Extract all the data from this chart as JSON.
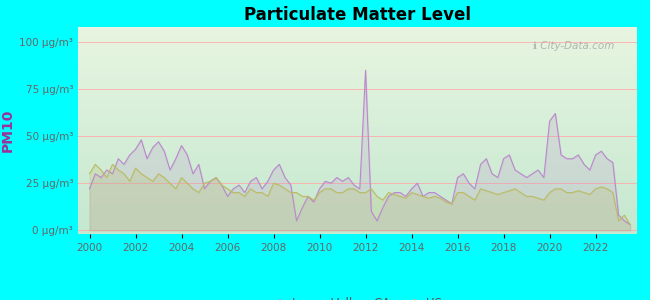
{
  "title": "Particulate Matter Level",
  "ylabel": "PM10",
  "background_color": "#00FFFF",
  "plot_bg_top": "#c5e8d0",
  "plot_bg_bottom": "#e8f5e0",
  "leona_color": "#bb88cc",
  "us_color": "#bbbb66",
  "watermark": "ℹ City-Data.com",
  "yticks": [
    0,
    25,
    50,
    75,
    100
  ],
  "ytick_labels": [
    "0 μg/m³",
    "25 μg/m³",
    "50 μg/m³",
    "75 μg/m³",
    "100 μg/m³"
  ],
  "xlim": [
    1999.5,
    2023.8
  ],
  "ylim": [
    -2,
    108
  ],
  "leona_x": [
    2000.0,
    2000.25,
    2000.5,
    2000.75,
    2001.0,
    2001.25,
    2001.5,
    2001.75,
    2002.0,
    2002.25,
    2002.5,
    2002.75,
    2003.0,
    2003.25,
    2003.5,
    2003.75,
    2004.0,
    2004.25,
    2004.5,
    2004.75,
    2005.0,
    2005.25,
    2005.5,
    2005.75,
    2006.0,
    2006.25,
    2006.5,
    2006.75,
    2007.0,
    2007.25,
    2007.5,
    2007.75,
    2008.0,
    2008.25,
    2008.5,
    2008.75,
    2009.0,
    2009.25,
    2009.5,
    2009.75,
    2010.0,
    2010.25,
    2010.5,
    2010.75,
    2011.0,
    2011.25,
    2011.5,
    2011.75,
    2012.0,
    2012.25,
    2012.5,
    2012.75,
    2013.0,
    2013.25,
    2013.5,
    2013.75,
    2014.0,
    2014.25,
    2014.5,
    2014.75,
    2015.0,
    2015.25,
    2015.5,
    2015.75,
    2016.0,
    2016.25,
    2016.5,
    2016.75,
    2017.0,
    2017.25,
    2017.5,
    2017.75,
    2018.0,
    2018.25,
    2018.5,
    2018.75,
    2019.0,
    2019.25,
    2019.5,
    2019.75,
    2020.0,
    2020.25,
    2020.5,
    2020.75,
    2021.0,
    2021.25,
    2021.5,
    2021.75,
    2022.0,
    2022.25,
    2022.5,
    2022.75,
    2023.0,
    2023.25,
    2023.5
  ],
  "leona_y": [
    22,
    30,
    28,
    32,
    30,
    38,
    35,
    40,
    43,
    48,
    38,
    44,
    47,
    42,
    32,
    38,
    45,
    40,
    30,
    35,
    22,
    26,
    28,
    24,
    18,
    22,
    24,
    20,
    26,
    28,
    22,
    26,
    32,
    35,
    28,
    24,
    5,
    12,
    18,
    15,
    22,
    26,
    25,
    28,
    26,
    28,
    24,
    22,
    85,
    10,
    5,
    12,
    18,
    20,
    20,
    18,
    22,
    25,
    18,
    20,
    20,
    18,
    16,
    14,
    28,
    30,
    25,
    22,
    35,
    38,
    30,
    28,
    38,
    40,
    32,
    30,
    28,
    30,
    32,
    28,
    58,
    62,
    40,
    38,
    38,
    40,
    35,
    32,
    40,
    42,
    38,
    36,
    8,
    5,
    3
  ],
  "us_x": [
    2000.0,
    2000.25,
    2000.5,
    2000.75,
    2001.0,
    2001.25,
    2001.5,
    2001.75,
    2002.0,
    2002.25,
    2002.5,
    2002.75,
    2003.0,
    2003.25,
    2003.5,
    2003.75,
    2004.0,
    2004.25,
    2004.5,
    2004.75,
    2005.0,
    2005.25,
    2005.5,
    2005.75,
    2006.0,
    2006.25,
    2006.5,
    2006.75,
    2007.0,
    2007.25,
    2007.5,
    2007.75,
    2008.0,
    2008.25,
    2008.5,
    2008.75,
    2009.0,
    2009.25,
    2009.5,
    2009.75,
    2010.0,
    2010.25,
    2010.5,
    2010.75,
    2011.0,
    2011.25,
    2011.5,
    2011.75,
    2012.0,
    2012.25,
    2012.5,
    2012.75,
    2013.0,
    2013.25,
    2013.5,
    2013.75,
    2014.0,
    2014.25,
    2014.5,
    2014.75,
    2015.0,
    2015.25,
    2015.5,
    2015.75,
    2016.0,
    2016.25,
    2016.5,
    2016.75,
    2017.0,
    2017.25,
    2017.5,
    2017.75,
    2018.0,
    2018.25,
    2018.5,
    2018.75,
    2019.0,
    2019.25,
    2019.5,
    2019.75,
    2020.0,
    2020.25,
    2020.5,
    2020.75,
    2021.0,
    2021.25,
    2021.5,
    2021.75,
    2022.0,
    2022.25,
    2022.5,
    2022.75,
    2023.0,
    2023.25,
    2023.5
  ],
  "us_y": [
    30,
    35,
    32,
    28,
    35,
    32,
    30,
    26,
    33,
    30,
    28,
    26,
    30,
    28,
    25,
    22,
    28,
    25,
    22,
    20,
    25,
    26,
    28,
    24,
    22,
    20,
    20,
    18,
    22,
    20,
    20,
    18,
    25,
    24,
    22,
    20,
    20,
    18,
    18,
    16,
    20,
    22,
    22,
    20,
    20,
    22,
    22,
    20,
    20,
    22,
    18,
    16,
    20,
    19,
    18,
    17,
    20,
    19,
    18,
    17,
    18,
    17,
    15,
    14,
    20,
    20,
    18,
    16,
    22,
    21,
    20,
    19,
    20,
    21,
    22,
    20,
    18,
    18,
    17,
    16,
    20,
    22,
    22,
    20,
    20,
    21,
    20,
    19,
    22,
    23,
    22,
    20,
    5,
    8,
    3
  ]
}
